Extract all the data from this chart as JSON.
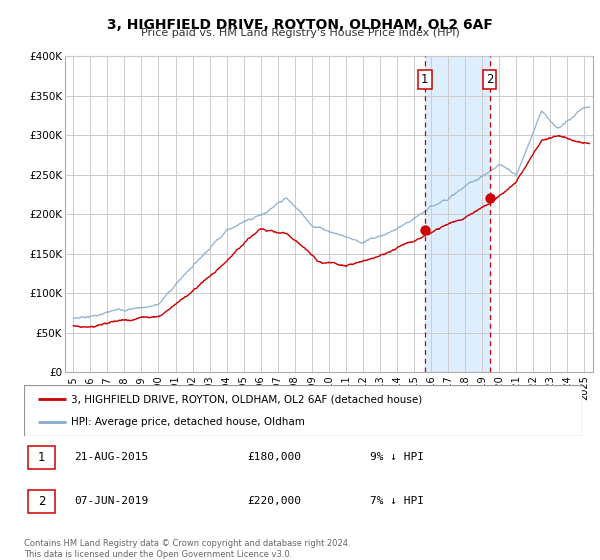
{
  "title": "3, HIGHFIELD DRIVE, ROYTON, OLDHAM, OL2 6AF",
  "subtitle": "Price paid vs. HM Land Registry's House Price Index (HPI)",
  "ylim": [
    0,
    400000
  ],
  "yticks": [
    0,
    50000,
    100000,
    150000,
    200000,
    250000,
    300000,
    350000,
    400000
  ],
  "ytick_labels": [
    "£0",
    "£50K",
    "£100K",
    "£150K",
    "£200K",
    "£250K",
    "£300K",
    "£350K",
    "£400K"
  ],
  "xlim_start": 1994.5,
  "xlim_end": 2025.5,
  "xtick_years": [
    1995,
    1996,
    1997,
    1998,
    1999,
    2000,
    2001,
    2002,
    2003,
    2004,
    2005,
    2006,
    2007,
    2008,
    2009,
    2010,
    2011,
    2012,
    2013,
    2014,
    2015,
    2016,
    2017,
    2018,
    2019,
    2020,
    2021,
    2022,
    2023,
    2024,
    2025
  ],
  "sale1_x": 2015.64,
  "sale1_y": 180000,
  "sale2_x": 2019.44,
  "sale2_y": 220000,
  "vline1_x": 2015.64,
  "vline2_x": 2019.44,
  "shade_start": 2015.64,
  "shade_end": 2019.44,
  "red_line_color": "#cc0000",
  "blue_line_color": "#88aacc",
  "shade_color": "#ddeeff",
  "marker_color": "#cc0000",
  "grid_color": "#cccccc",
  "legend_label_red": "3, HIGHFIELD DRIVE, ROYTON, OLDHAM, OL2 6AF (detached house)",
  "legend_label_blue": "HPI: Average price, detached house, Oldham",
  "note1_num": "1",
  "note1_date": "21-AUG-2015",
  "note1_price": "£180,000",
  "note1_hpi": "9% ↓ HPI",
  "note2_num": "2",
  "note2_date": "07-JUN-2019",
  "note2_price": "£220,000",
  "note2_hpi": "7% ↓ HPI",
  "footer": "Contains HM Land Registry data © Crown copyright and database right 2024.\nThis data is licensed under the Open Government Licence v3.0."
}
